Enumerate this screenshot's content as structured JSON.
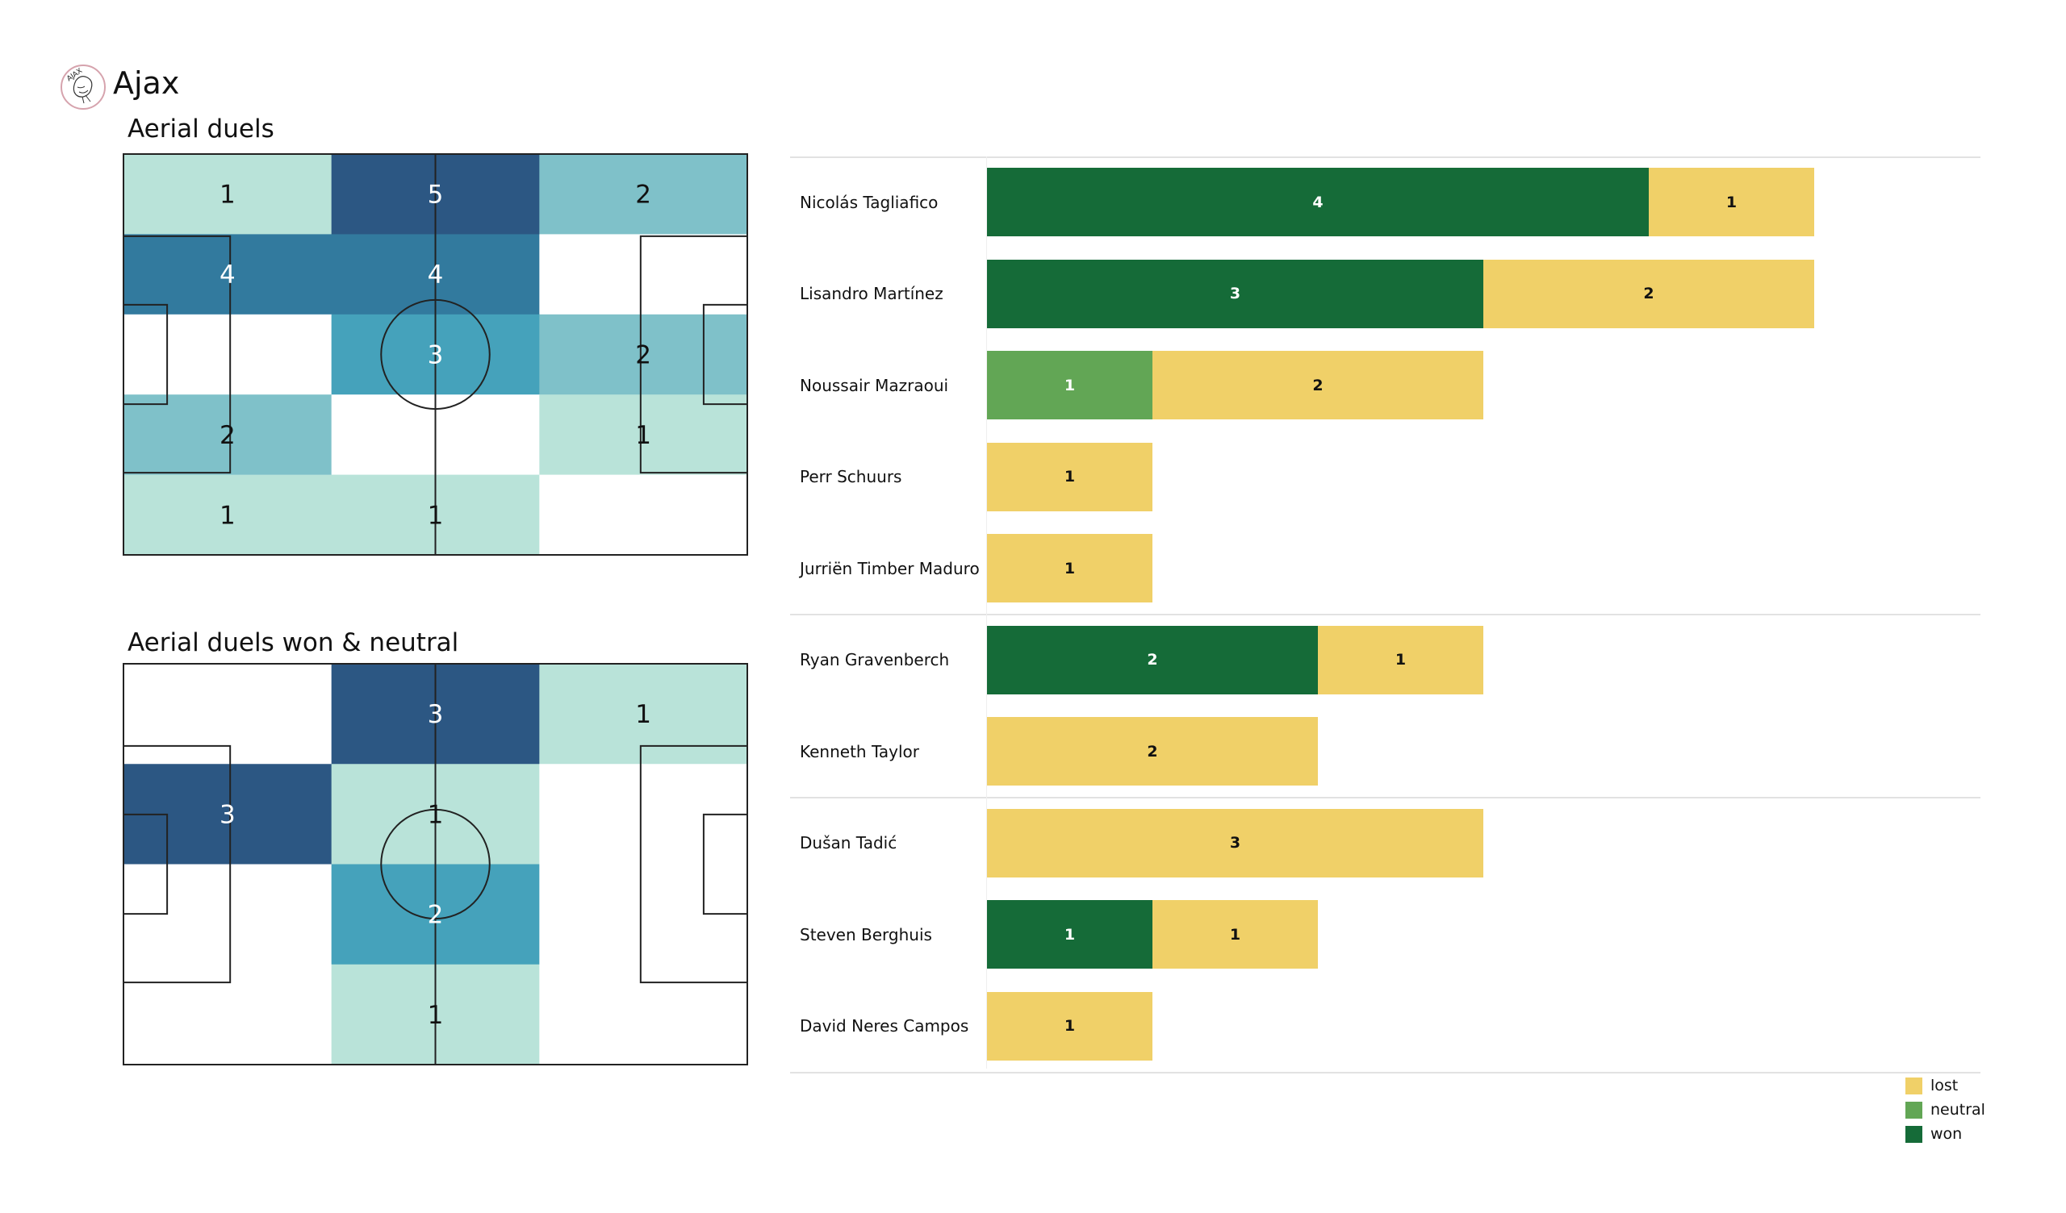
{
  "header": {
    "team": "Ajax",
    "logo_icon": "ajax-crest-icon"
  },
  "colors": {
    "won": "#156b38",
    "neutral": "#62a655",
    "lost": "#f0d068",
    "heat_scale": [
      "#ffffff",
      "#b9e3d9",
      "#7fc1c9",
      "#45a2bb",
      "#327a9e",
      "#2c5783"
    ],
    "heat_scale_won": [
      "#ffffff",
      "#b9e3d9",
      "#45a2bb",
      "#2c5783"
    ]
  },
  "chart_data": [
    {
      "type": "heatmap",
      "title": "Aerial duels",
      "grid": "3 columns (pitch thirds, left to right) x 5 rows (top to bottom)",
      "values": [
        [
          1,
          5,
          2
        ],
        [
          4,
          4,
          0
        ],
        [
          0,
          3,
          2
        ],
        [
          2,
          0,
          1
        ],
        [
          1,
          1,
          0
        ]
      ]
    },
    {
      "type": "heatmap",
      "title": "Aerial duels won & neutral",
      "grid": "3 columns (pitch thirds, left to right) x 4 rows (top to bottom)",
      "values": [
        [
          0,
          3,
          1
        ],
        [
          3,
          1,
          0
        ],
        [
          0,
          2,
          0
        ],
        [
          0,
          1,
          0
        ]
      ]
    },
    {
      "type": "bar",
      "orientation": "horizontal-stacked",
      "title": "",
      "series_order": [
        "won",
        "neutral",
        "lost"
      ],
      "legend": [
        "lost",
        "neutral",
        "won"
      ],
      "legend_position": "bottom-right",
      "xlim": [
        0,
        5
      ],
      "groups": [
        [
          0,
          1,
          2,
          3,
          4
        ],
        [
          5,
          6
        ],
        [
          7,
          8,
          9
        ]
      ],
      "players": [
        {
          "name": "Nicolás Tagliafico",
          "won": 4,
          "neutral": 0,
          "lost": 1
        },
        {
          "name": "Lisandro Martínez",
          "won": 3,
          "neutral": 0,
          "lost": 2
        },
        {
          "name": "Noussair Mazraoui",
          "won": 0,
          "neutral": 1,
          "lost": 2
        },
        {
          "name": "Perr Schuurs",
          "won": 0,
          "neutral": 0,
          "lost": 1
        },
        {
          "name": "Jurriën Timber Maduro",
          "won": 0,
          "neutral": 0,
          "lost": 1
        },
        {
          "name": "Ryan Gravenberch",
          "won": 2,
          "neutral": 0,
          "lost": 1
        },
        {
          "name": "Kenneth Taylor",
          "won": 0,
          "neutral": 0,
          "lost": 2
        },
        {
          "name": "Dušan Tadić",
          "won": 0,
          "neutral": 0,
          "lost": 3
        },
        {
          "name": "Steven Berghuis",
          "won": 1,
          "neutral": 0,
          "lost": 1
        },
        {
          "name": "David Neres Campos",
          "won": 0,
          "neutral": 0,
          "lost": 1
        }
      ]
    }
  ],
  "legend": {
    "items": [
      {
        "key": "lost",
        "label": "lost"
      },
      {
        "key": "neutral",
        "label": "neutral"
      },
      {
        "key": "won",
        "label": "won"
      }
    ]
  }
}
